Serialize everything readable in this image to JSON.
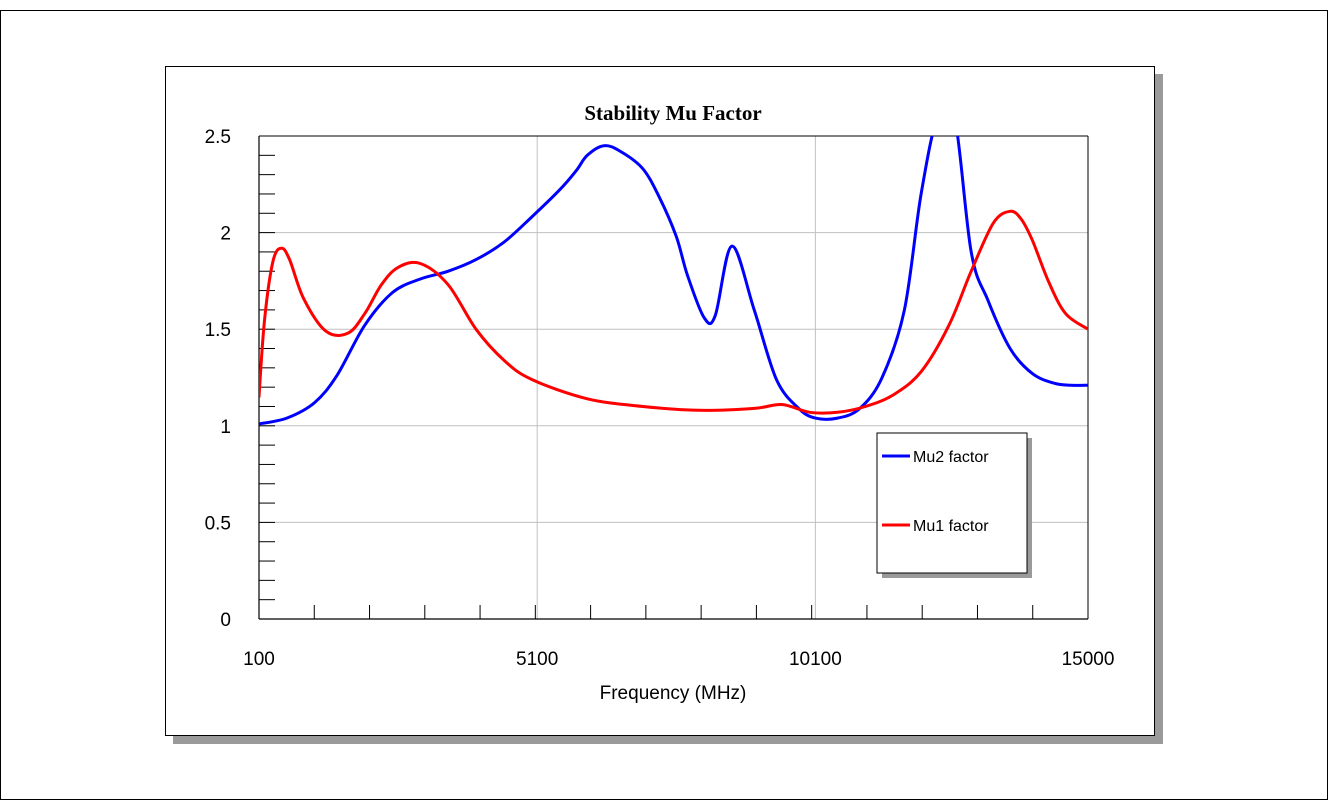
{
  "chart_data": {
    "type": "line",
    "title": "Stability Mu Factor",
    "xlabel": "Frequency (MHz)",
    "ylabel": "",
    "xlim": [
      100,
      15000
    ],
    "ylim": [
      0,
      2.5
    ],
    "x_ticks": [
      100,
      5100,
      10100,
      15000
    ],
    "x_tick_labels": [
      "100",
      "5100",
      "10100",
      "15000"
    ],
    "y_ticks": [
      0,
      0.5,
      1,
      1.5,
      2,
      2.5
    ],
    "y_tick_labels": [
      "0",
      "0.5",
      "1",
      "1.5",
      "2",
      "2.5"
    ],
    "grid": true,
    "legend_position": "bottom-right",
    "series": [
      {
        "name": "Mu2 factor",
        "color": "#0000ff",
        "x": [
          100,
          600,
          1100,
          1500,
          2000,
          2500,
          3000,
          3500,
          4000,
          4500,
          5000,
          5500,
          5800,
          6000,
          6300,
          6600,
          7000,
          7300,
          7600,
          7800,
          8100,
          8300,
          8600,
          9000,
          9400,
          9800,
          10100,
          10500,
          10900,
          11300,
          11700,
          12000,
          12300,
          12600,
          12900,
          13200,
          13600,
          14000,
          14400,
          14700,
          15000
        ],
        "y": [
          1.01,
          1.04,
          1.12,
          1.26,
          1.52,
          1.69,
          1.76,
          1.8,
          1.86,
          1.95,
          2.08,
          2.22,
          2.32,
          2.4,
          2.45,
          2.42,
          2.33,
          2.18,
          1.98,
          1.78,
          1.56,
          1.57,
          1.93,
          1.6,
          1.24,
          1.09,
          1.04,
          1.04,
          1.09,
          1.25,
          1.6,
          2.2,
          2.6,
          2.6,
          1.9,
          1.65,
          1.4,
          1.27,
          1.22,
          1.21,
          1.21
        ]
      },
      {
        "name": "Mu1 factor",
        "color": "#ff0000",
        "x": [
          100,
          200,
          350,
          500,
          650,
          900,
          1300,
          1700,
          2000,
          2300,
          2600,
          3000,
          3500,
          4000,
          4500,
          5000,
          6000,
          7000,
          8000,
          9000,
          9500,
          10000,
          10500,
          11000,
          11500,
          12000,
          12500,
          12900,
          13300,
          13600,
          13800,
          14000,
          14300,
          14600,
          15000
        ],
        "y": [
          1.15,
          1.55,
          1.85,
          1.92,
          1.86,
          1.66,
          1.49,
          1.48,
          1.58,
          1.73,
          1.82,
          1.84,
          1.73,
          1.5,
          1.34,
          1.24,
          1.14,
          1.1,
          1.08,
          1.09,
          1.11,
          1.07,
          1.07,
          1.1,
          1.16,
          1.28,
          1.52,
          1.8,
          2.05,
          2.11,
          2.07,
          1.96,
          1.74,
          1.58,
          1.5
        ]
      }
    ]
  }
}
